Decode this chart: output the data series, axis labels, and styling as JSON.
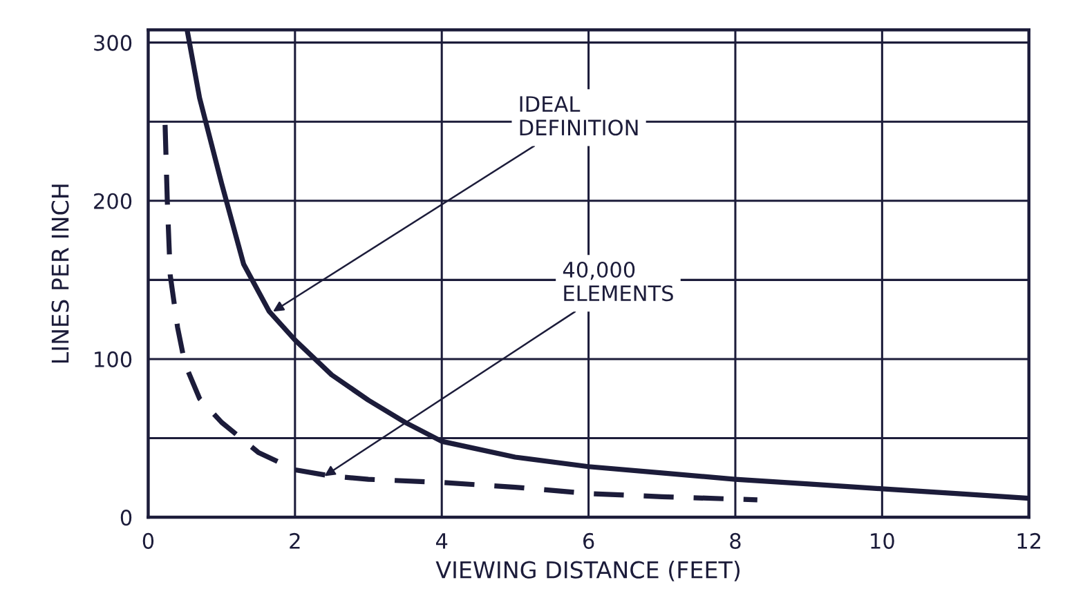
{
  "chart_data": {
    "type": "line",
    "xlabel": "VIEWING DISTANCE (FEET)",
    "ylabel": "LINES PER INCH",
    "xlim": [
      0,
      12
    ],
    "ylim": [
      0,
      308
    ],
    "xticks": [
      0,
      2,
      4,
      6,
      8,
      10,
      12
    ],
    "yticks": [
      0,
      {
        "value": 50,
        "label": null
      },
      100,
      {
        "value": 150,
        "label": null
      },
      200,
      {
        "value": 250,
        "label": null
      },
      300
    ],
    "grid": true,
    "legend": false,
    "marker": "none",
    "series": [
      {
        "color": "#1c1c3a",
        "line_style": "solid",
        "x": [
          0.53,
          0.7,
          1.0,
          1.3,
          1.65,
          2.0,
          2.5,
          3.0,
          3.5,
          4.0,
          5.0,
          6.0,
          7.0,
          8.0,
          9.0,
          10.0,
          11.0,
          12.0
        ],
        "values": [
          308,
          265,
          211,
          160,
          130,
          112,
          90,
          74,
          60,
          48,
          38,
          32,
          28,
          24,
          21,
          18,
          15,
          12
        ]
      },
      {
        "color": "#1c1c3a",
        "line_style": "dashed",
        "x": [
          0.23,
          0.26,
          0.3,
          0.4,
          0.5,
          0.7,
          1.0,
          1.5,
          2.0,
          2.5,
          3.0,
          4.0,
          5.0,
          6.0,
          7.0,
          8.3
        ],
        "values": [
          248,
          200,
          153,
          120,
          97,
          75,
          60,
          41,
          30,
          26,
          24,
          22,
          19,
          15,
          13,
          11
        ]
      }
    ],
    "annotations": [
      {
        "text": "IDEAL\nDEFINITION",
        "x": 1.7,
        "y": 130
      },
      {
        "text": "40,000\nELEMENTS",
        "x": 2.4,
        "y": 26
      }
    ]
  }
}
